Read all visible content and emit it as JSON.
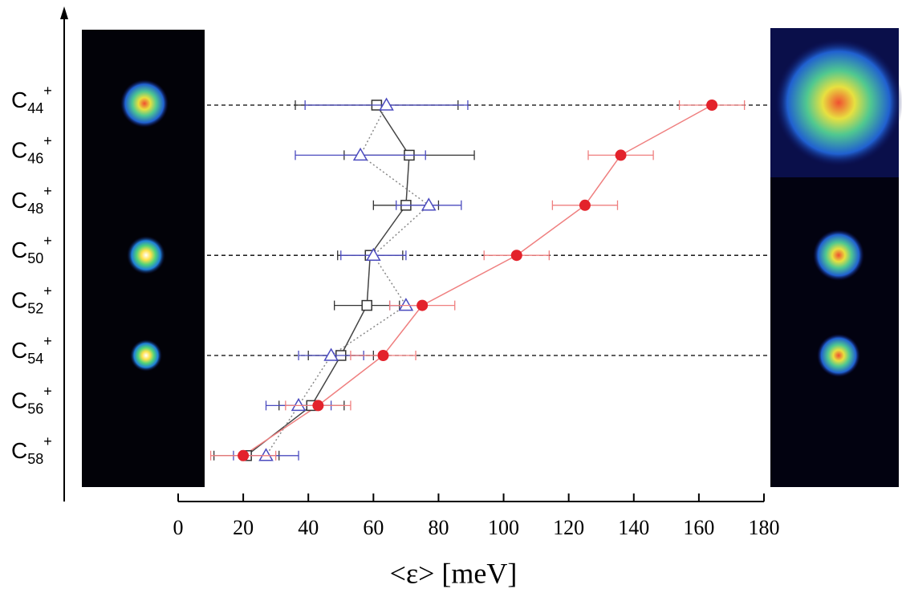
{
  "chart_data": {
    "type": "errorbar",
    "xlabel": "<ε> [meV]",
    "categories": [
      {
        "name": "C",
        "sub": "44",
        "sup": "+"
      },
      {
        "name": "C",
        "sub": "46",
        "sup": "+"
      },
      {
        "name": "C",
        "sub": "48",
        "sup": "+"
      },
      {
        "name": "C",
        "sub": "50",
        "sup": "+"
      },
      {
        "name": "C",
        "sub": "52",
        "sup": "+"
      },
      {
        "name": "C",
        "sub": "54",
        "sup": "+"
      },
      {
        "name": "C",
        "sub": "56",
        "sup": "+"
      },
      {
        "name": "C",
        "sub": "58",
        "sup": "+"
      }
    ],
    "series": [
      {
        "marker": "square",
        "color": "#333333",
        "line_color": "#444444",
        "line_style": "solid",
        "values": [
          61,
          71,
          70,
          59,
          58,
          50,
          41,
          21
        ],
        "errors": [
          25,
          20,
          10,
          10,
          10,
          10,
          10,
          10
        ]
      },
      {
        "marker": "triangle",
        "color": "#4b4bbf",
        "line_color": "#888888",
        "line_style": "dotted",
        "values": [
          64,
          56,
          77,
          60,
          70,
          47,
          37,
          27
        ],
        "errors": [
          25,
          20,
          10,
          10,
          5,
          10,
          10,
          10
        ]
      },
      {
        "marker": "circle",
        "color": "#e3222b",
        "line_color": "#ef7f7f",
        "line_style": "solid",
        "values": [
          164,
          136,
          125,
          104,
          75,
          63,
          43,
          20
        ],
        "errors": [
          10,
          10,
          10,
          10,
          10,
          10,
          10,
          10
        ]
      }
    ],
    "xlim": [
      0,
      180
    ],
    "xticks": [
      0,
      20,
      40,
      60,
      80,
      100,
      120,
      140,
      160,
      180
    ]
  }
}
